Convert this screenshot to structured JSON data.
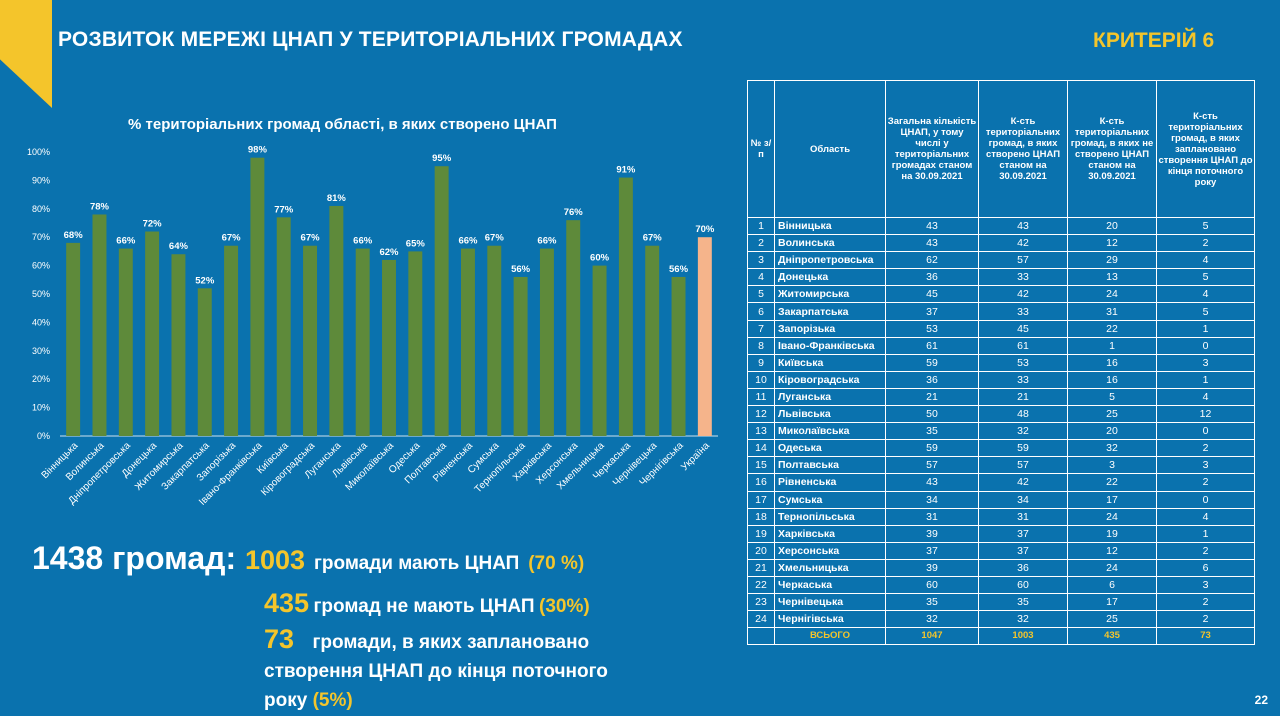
{
  "header": {
    "title": "РОЗВИТОК МЕРЕЖІ ЦНАП У ТЕРИТОРІАЛЬНИХ ГРОМАДАХ",
    "criteria": "КРИТЕРІЙ 6"
  },
  "colors": {
    "accent": "#f4c52b",
    "background": "#0a72ae",
    "bar": "#5e8a3a",
    "bar_highlight": "#f5b48b"
  },
  "chart_data": {
    "type": "bar",
    "title": "% територіальних громад області, в яких створено ЦНАП",
    "categories": [
      "Вінницька",
      "Волинська",
      "Дніпропетровська",
      "Донецька",
      "Житомирська",
      "Закарпатська",
      "Запорізька",
      "Івано-Франківська",
      "Київська",
      "Кіровоградська",
      "Луганська",
      "Львівська",
      "Миколаївська",
      "Одеська",
      "Полтавська",
      "Рівненська",
      "Сумська",
      "Тернопільська",
      "Харківська",
      "Херсонська",
      "Хмельницька",
      "Черкаська",
      "Чернівецька",
      "Чернігівська",
      "Україна"
    ],
    "values": [
      68,
      78,
      66,
      72,
      64,
      52,
      67,
      98,
      77,
      67,
      81,
      66,
      62,
      65,
      95,
      66,
      67,
      56,
      66,
      76,
      60,
      91,
      67,
      56,
      70
    ],
    "data_labels": [
      "68%",
      "78%",
      "66%",
      "72%",
      "64%",
      "52%",
      "67%",
      "98%",
      "77%",
      "67%",
      "81%",
      "66%",
      "62%",
      "65%",
      "95%",
      "66%",
      "67%",
      "56%",
      "66%",
      "76%",
      "60%",
      "91%",
      "67%",
      "56%",
      "70%"
    ],
    "highlight_category": "Україна",
    "ylim": [
      0,
      100
    ],
    "yticks": [
      "0%",
      "10%",
      "20%",
      "30%",
      "40%",
      "50%",
      "60%",
      "70%",
      "80%",
      "90%",
      "100%"
    ],
    "grid": false,
    "legend": "none"
  },
  "summary": {
    "total_prefix": "1438 громад:",
    "line1": {
      "num": "1003",
      "text": "громади мають ЦНАП",
      "pct": "(70 %)"
    },
    "line2": {
      "num": "435",
      "text": "громад не мають ЦНАП",
      "pct": "(30%)"
    },
    "line3": {
      "num": "73",
      "text": "громади, в яких заплановано"
    },
    "line4": {
      "text": "створення ЦНАП до кінця поточного"
    },
    "line5": {
      "text": "року",
      "pct": "(5%)"
    }
  },
  "table": {
    "headers": [
      "№ з/п",
      "Область",
      "Загальна кількість ЦНАП, у тому числі у територіальних громадах станом на 30.09.2021",
      "К-сть територіальних громад, в яких створено ЦНАП станом на 30.09.2021",
      "К-сть територіальних громад, в яких не створено ЦНАП станом на 30.09.2021",
      "К-сть територіальних громад, в яких заплановано створення ЦНАП до кінця поточного року"
    ],
    "rows": [
      [
        "1",
        "Вінницька",
        "43",
        "43",
        "20",
        "5"
      ],
      [
        "2",
        "Волинська",
        "43",
        "42",
        "12",
        "2"
      ],
      [
        "3",
        "Дніпропетровська",
        "62",
        "57",
        "29",
        "4"
      ],
      [
        "4",
        "Донецька",
        "36",
        "33",
        "13",
        "5"
      ],
      [
        "5",
        "Житомирська",
        "45",
        "42",
        "24",
        "4"
      ],
      [
        "6",
        "Закарпатська",
        "37",
        "33",
        "31",
        "5"
      ],
      [
        "7",
        "Запорізька",
        "53",
        "45",
        "22",
        "1"
      ],
      [
        "8",
        "Івано-Франківська",
        "61",
        "61",
        "1",
        "0"
      ],
      [
        "9",
        "Київська",
        "59",
        "53",
        "16",
        "3"
      ],
      [
        "10",
        "Кіровоградська",
        "36",
        "33",
        "16",
        "1"
      ],
      [
        "11",
        "Луганська",
        "21",
        "21",
        "5",
        "4"
      ],
      [
        "12",
        "Львівська",
        "50",
        "48",
        "25",
        "12"
      ],
      [
        "13",
        "Миколаївська",
        "35",
        "32",
        "20",
        "0"
      ],
      [
        "14",
        "Одеська",
        "59",
        "59",
        "32",
        "2"
      ],
      [
        "15",
        "Полтавська",
        "57",
        "57",
        "3",
        "3"
      ],
      [
        "16",
        "Рівненська",
        "43",
        "42",
        "22",
        "2"
      ],
      [
        "17",
        "Сумська",
        "34",
        "34",
        "17",
        "0"
      ],
      [
        "18",
        "Тернопільська",
        "31",
        "31",
        "24",
        "4"
      ],
      [
        "19",
        "Харківська",
        "39",
        "37",
        "19",
        "1"
      ],
      [
        "20",
        "Херсонська",
        "37",
        "37",
        "12",
        "2"
      ],
      [
        "21",
        "Хмельницька",
        "39",
        "36",
        "24",
        "6"
      ],
      [
        "22",
        "Черкаська",
        "60",
        "60",
        "6",
        "3"
      ],
      [
        "23",
        "Чернівецька",
        "35",
        "35",
        "17",
        "2"
      ],
      [
        "24",
        "Чернігівська",
        "32",
        "32",
        "25",
        "2"
      ]
    ],
    "total_row": [
      "",
      "ВСЬОГО",
      "1047",
      "1003",
      "435",
      "73"
    ]
  },
  "page_number": "22"
}
